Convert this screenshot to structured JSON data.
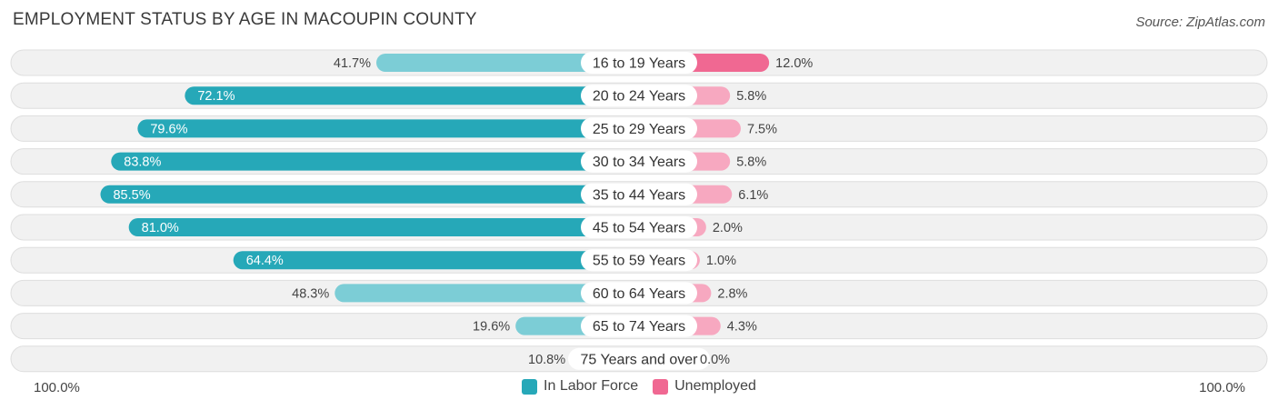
{
  "chart_data": {
    "type": "bar",
    "title": "EMPLOYMENT STATUS BY AGE IN MACOUPIN COUNTY",
    "source": "Source: ZipAtlas.com",
    "categories": [
      "16 to 19 Years",
      "20 to 24 Years",
      "25 to 29 Years",
      "30 to 34 Years",
      "35 to 44 Years",
      "45 to 54 Years",
      "55 to 59 Years",
      "60 to 64 Years",
      "65 to 74 Years",
      "75 Years and over"
    ],
    "series": [
      {
        "name": "In Labor Force",
        "values": [
          41.7,
          72.1,
          79.6,
          83.8,
          85.5,
          81.0,
          64.4,
          48.3,
          19.6,
          10.8
        ],
        "labels": [
          "41.7%",
          "72.1%",
          "79.6%",
          "83.8%",
          "85.5%",
          "81.0%",
          "64.4%",
          "48.3%",
          "19.6%",
          "10.8%"
        ]
      },
      {
        "name": "Unemployed",
        "values": [
          12.0,
          5.8,
          7.5,
          5.8,
          6.1,
          2.0,
          1.0,
          2.8,
          4.3,
          0.0
        ],
        "labels": [
          "12.0%",
          "5.8%",
          "7.5%",
          "5.8%",
          "6.1%",
          "2.0%",
          "1.0%",
          "2.8%",
          "4.3%",
          "0.0%"
        ]
      }
    ],
    "axis_left_label": "100.0%",
    "axis_right_label": "100.0%",
    "xlim": [
      0,
      100
    ],
    "legend_position": "bottom-center"
  },
  "colors": {
    "labor_strong": "#26a8b8",
    "labor_light": "#7ccdd6",
    "unemployed_strong": "#f06892",
    "unemployed_light": "#f7a8c0",
    "track": "#f1f1f1",
    "track_border": "#dedede"
  }
}
